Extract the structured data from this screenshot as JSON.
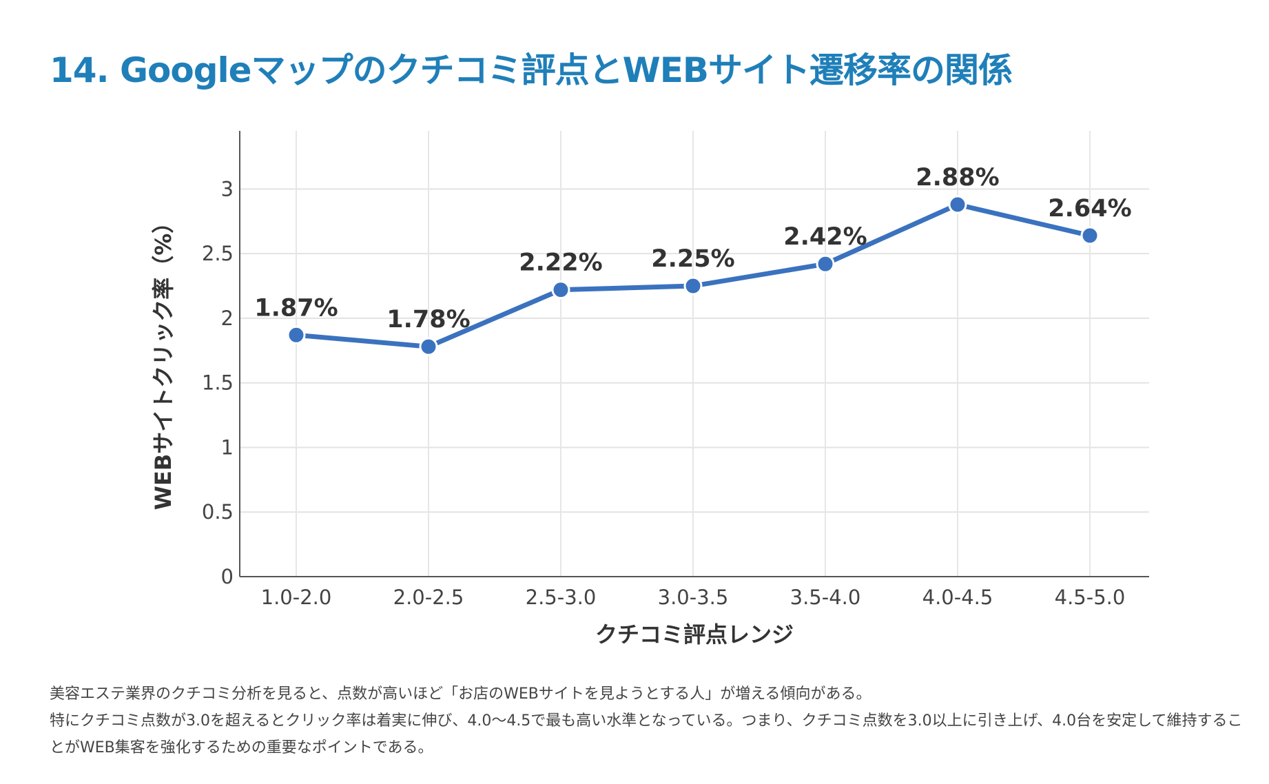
{
  "page": {
    "title": "14. Googleマップのクチコミ評点とWEBサイト遷移率の関係"
  },
  "chart_data": {
    "type": "line",
    "title": "",
    "xlabel": "クチコミ評点レンジ",
    "ylabel": "WEBサイトクリック率（%）",
    "categories": [
      "1.0-2.0",
      "2.0-2.5",
      "2.5-3.0",
      "3.0-3.5",
      "3.5-4.0",
      "4.0-4.5",
      "4.5-5.0"
    ],
    "series": [
      {
        "name": "WEBサイトクリック率",
        "values": [
          1.87,
          1.78,
          2.22,
          2.25,
          2.42,
          2.88,
          2.64
        ],
        "labels": [
          "1.87%",
          "1.78%",
          "2.22%",
          "2.25%",
          "2.42%",
          "2.88%",
          "2.64%"
        ],
        "color": "#3a72bf"
      }
    ],
    "ylim": [
      0,
      3.45
    ],
    "yticks": [
      0,
      0.5,
      1,
      1.5,
      2,
      2.5,
      3
    ],
    "ytick_labels": [
      "0",
      "0.5",
      "1",
      "1.5",
      "2",
      "2.5",
      "3"
    ],
    "grid": true,
    "legend": "none"
  },
  "description": {
    "line1": "美容エステ業界のクチコミ分析を見ると、点数が高いほど「お店のWEBサイトを見ようとする人」が増える傾向がある。",
    "line2": "特にクチコミ点数が3.0を超えるとクリック率は着実に伸び、4.0〜4.5で最も高い水準となっている。つまり、クチコミ点数を3.0以上に引き上げ、4.0台を安定して維持することがWEB集客を強化するための重要なポイントである。"
  }
}
